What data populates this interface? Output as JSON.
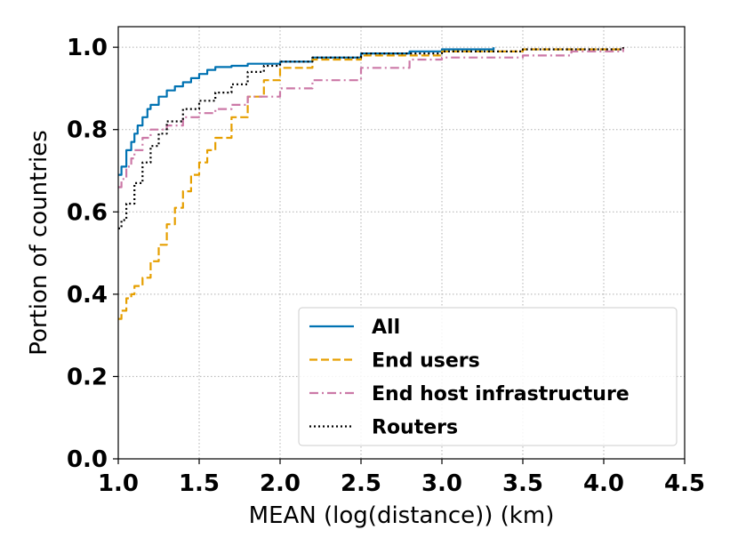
{
  "chart_data": {
    "type": "line",
    "title": "",
    "xlabel": "MEAN (log(distance)) (km)",
    "ylabel": "Portion of countries",
    "xlim": [
      1.0,
      4.5
    ],
    "ylim": [
      0.0,
      1.05
    ],
    "xticks": [
      "1.0",
      "1.5",
      "2.0",
      "2.5",
      "3.0",
      "3.5",
      "4.0",
      "4.5"
    ],
    "yticks": [
      "0.0",
      "0.2",
      "0.4",
      "0.6",
      "0.8",
      "1.0"
    ],
    "grid": true,
    "legend_position": "lower-right",
    "series": [
      {
        "name": "All",
        "color": "#0072B2",
        "dash": "solid",
        "x": [
          1.0,
          1.02,
          1.05,
          1.08,
          1.1,
          1.12,
          1.15,
          1.18,
          1.2,
          1.25,
          1.3,
          1.35,
          1.4,
          1.45,
          1.5,
          1.55,
          1.6,
          1.7,
          1.8,
          2.0,
          2.2,
          2.5,
          2.8,
          3.0,
          3.32
        ],
        "y": [
          0.69,
          0.71,
          0.75,
          0.77,
          0.79,
          0.81,
          0.83,
          0.85,
          0.86,
          0.88,
          0.895,
          0.905,
          0.915,
          0.925,
          0.935,
          0.945,
          0.952,
          0.955,
          0.96,
          0.965,
          0.975,
          0.985,
          0.99,
          0.995,
          1.0
        ]
      },
      {
        "name": "End users",
        "color": "#E69F00",
        "dash": "dashed",
        "x": [
          1.0,
          1.02,
          1.05,
          1.08,
          1.1,
          1.15,
          1.2,
          1.25,
          1.3,
          1.35,
          1.4,
          1.45,
          1.5,
          1.55,
          1.6,
          1.7,
          1.8,
          1.9,
          2.0,
          2.2,
          2.5,
          3.0,
          3.5,
          4.12
        ],
        "y": [
          0.34,
          0.36,
          0.39,
          0.4,
          0.42,
          0.44,
          0.48,
          0.52,
          0.57,
          0.61,
          0.65,
          0.69,
          0.72,
          0.75,
          0.78,
          0.83,
          0.88,
          0.92,
          0.95,
          0.97,
          0.98,
          0.99,
          0.995,
          1.0
        ]
      },
      {
        "name": "End host infrastructure",
        "color": "#CC79A7",
        "dash": "dashdot",
        "x": [
          1.0,
          1.02,
          1.05,
          1.08,
          1.1,
          1.15,
          1.2,
          1.3,
          1.4,
          1.5,
          1.6,
          1.7,
          1.8,
          2.0,
          2.2,
          2.5,
          2.8,
          3.0,
          3.5,
          3.8,
          4.12
        ],
        "y": [
          0.66,
          0.68,
          0.71,
          0.73,
          0.75,
          0.78,
          0.8,
          0.81,
          0.83,
          0.84,
          0.85,
          0.86,
          0.88,
          0.9,
          0.92,
          0.95,
          0.97,
          0.975,
          0.98,
          0.99,
          1.0
        ]
      },
      {
        "name": "Routers",
        "color": "#000000",
        "dash": "dotted",
        "x": [
          1.0,
          1.02,
          1.05,
          1.1,
          1.15,
          1.2,
          1.25,
          1.3,
          1.4,
          1.5,
          1.6,
          1.7,
          1.8,
          1.9,
          2.0,
          2.2,
          2.5,
          3.0,
          3.5,
          4.12
        ],
        "y": [
          0.56,
          0.58,
          0.62,
          0.67,
          0.72,
          0.76,
          0.79,
          0.82,
          0.85,
          0.87,
          0.89,
          0.91,
          0.94,
          0.955,
          0.965,
          0.975,
          0.985,
          0.99,
          0.995,
          1.0
        ]
      }
    ]
  }
}
